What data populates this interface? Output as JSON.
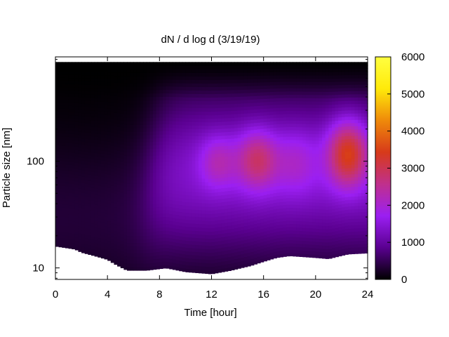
{
  "chart_data": {
    "type": "heatmap",
    "title": "dN / d log d (3/19/19)",
    "xlabel": "Time [hour]",
    "ylabel": "Particle size [nm]",
    "xlim": [
      0,
      24
    ],
    "ylim": [
      7.8,
      950
    ],
    "yscale": "log",
    "x_ticks": [
      0,
      4,
      8,
      12,
      16,
      20,
      24
    ],
    "y_ticks": [
      10,
      100
    ],
    "colorbar": {
      "min": 0,
      "max": 6000,
      "ticks": [
        0,
        1000,
        2000,
        3000,
        4000,
        5000,
        6000
      ],
      "palette": [
        "#000000",
        "#5a0090",
        "#9b1ff2",
        "#c0308c",
        "#d73a1a",
        "#ef8a0a",
        "#ffea0a",
        "#ffff40"
      ]
    },
    "size_limits": {
      "max_nm": 850
    },
    "lower_limit_nm": [
      [
        0,
        16
      ],
      [
        1.5,
        15
      ],
      [
        2,
        14
      ],
      [
        3,
        13
      ],
      [
        4,
        12
      ],
      [
        4.5,
        11
      ],
      [
        5,
        10.2
      ],
      [
        5.5,
        9.5
      ],
      [
        7,
        9.5
      ],
      [
        8.5,
        10
      ],
      [
        10,
        9.2
      ],
      [
        12,
        8.8
      ],
      [
        13.5,
        9.5
      ],
      [
        15,
        10.5
      ],
      [
        16,
        11.5
      ],
      [
        17,
        12.5
      ],
      [
        18,
        13
      ],
      [
        20,
        12.5
      ],
      [
        21,
        12.2
      ],
      [
        22.5,
        13.5
      ],
      [
        24,
        13.8
      ]
    ],
    "features": [
      {
        "time_h": 12.5,
        "size_nm": 100,
        "spread_h": 1.0,
        "spread_log": 0.18,
        "value": 900
      },
      {
        "time_h": 15.5,
        "size_nm": 105,
        "spread_h": 1.1,
        "spread_log": 0.2,
        "value": 1500
      },
      {
        "time_h": 18.5,
        "size_nm": 100,
        "spread_h": 1.2,
        "spread_log": 0.22,
        "value": 700
      },
      {
        "time_h": 22.5,
        "size_nm": 120,
        "spread_h": 1.1,
        "spread_log": 0.22,
        "value": 2200
      }
    ]
  }
}
